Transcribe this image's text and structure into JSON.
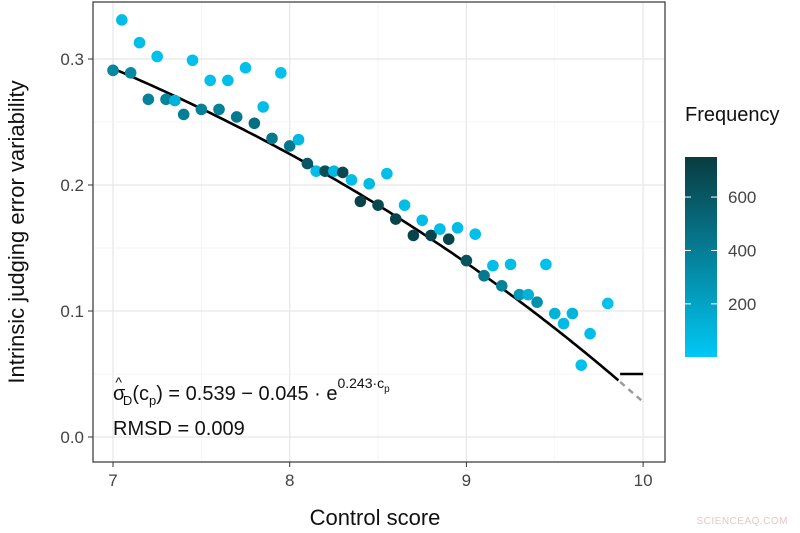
{
  "chart_data": {
    "type": "scatter",
    "xlabel": "Control score",
    "ylabel": "Intrinsic judging error variability",
    "xlim": [
      6.89,
      10.12
    ],
    "ylim": [
      -0.02,
      0.345
    ],
    "xticks": [
      "7",
      "8",
      "9",
      "10"
    ],
    "yticks": [
      "0.0",
      "0.1",
      "0.2",
      "0.3"
    ],
    "grid": true,
    "points": {
      "x": [
        7.0,
        7.05,
        7.1,
        7.15,
        7.2,
        7.25,
        7.3,
        7.35,
        7.4,
        7.45,
        7.5,
        7.55,
        7.6,
        7.65,
        7.7,
        7.75,
        7.8,
        7.85,
        7.9,
        7.95,
        8.0,
        8.05,
        8.1,
        8.15,
        8.2,
        8.25,
        8.3,
        8.35,
        8.4,
        8.45,
        8.5,
        8.55,
        8.6,
        8.65,
        8.7,
        8.75,
        8.8,
        8.85,
        8.9,
        8.95,
        9.0,
        9.05,
        9.1,
        9.15,
        9.2,
        9.25,
        9.3,
        9.35,
        9.4,
        9.45,
        9.5,
        9.55,
        9.6,
        9.65,
        9.7,
        9.8
      ],
      "y": [
        0.291,
        0.331,
        0.289,
        0.313,
        0.268,
        0.302,
        0.268,
        0.267,
        0.256,
        0.299,
        0.26,
        0.283,
        0.26,
        0.283,
        0.254,
        0.293,
        0.249,
        0.262,
        0.237,
        0.289,
        0.231,
        0.236,
        0.217,
        0.211,
        0.211,
        0.211,
        0.21,
        0.204,
        0.187,
        0.201,
        0.184,
        0.209,
        0.173,
        0.184,
        0.16,
        0.172,
        0.16,
        0.165,
        0.157,
        0.166,
        0.14,
        0.161,
        0.128,
        0.136,
        0.12,
        0.137,
        0.113,
        0.113,
        0.107,
        0.137,
        0.098,
        0.09,
        0.098,
        0.057,
        0.082,
        0.106
      ],
      "frequency": [
        350,
        60,
        330,
        60,
        380,
        40,
        360,
        120,
        400,
        40,
        380,
        40,
        380,
        50,
        420,
        40,
        480,
        60,
        420,
        40,
        430,
        80,
        600,
        60,
        650,
        80,
        680,
        60,
        700,
        70,
        680,
        50,
        700,
        60,
        700,
        60,
        700,
        60,
        700,
        60,
        620,
        40,
        420,
        60,
        380,
        60,
        250,
        120,
        300,
        40,
        120,
        80,
        100,
        40,
        60,
        40
      ]
    },
    "fit": {
      "a": 0.539,
      "b": 0.045,
      "k": 0.243,
      "x_solid_end": 9.87,
      "floor": 0.05,
      "color": "#000000",
      "extrapolation_color": "#999999"
    },
    "annotation": {
      "sigma": "σ",
      "hat": "^",
      "sub_d": "D",
      "paren_open": "(c",
      "sub_p": "p",
      "eq_rest": ") = 0.539 − 0.045 · e",
      "exp": "0.243·c",
      "exp_sub": "p",
      "rmsd": "RMSD = 0.009"
    },
    "legend": {
      "title": "Frequency",
      "ticks": [
        "200",
        "400",
        "600"
      ],
      "range": [
        1,
        750
      ],
      "color_low": "#00c8f5",
      "color_high": "#0a3b40",
      "placement": "right"
    }
  },
  "watermark": "SCIENCEAQ.COM"
}
